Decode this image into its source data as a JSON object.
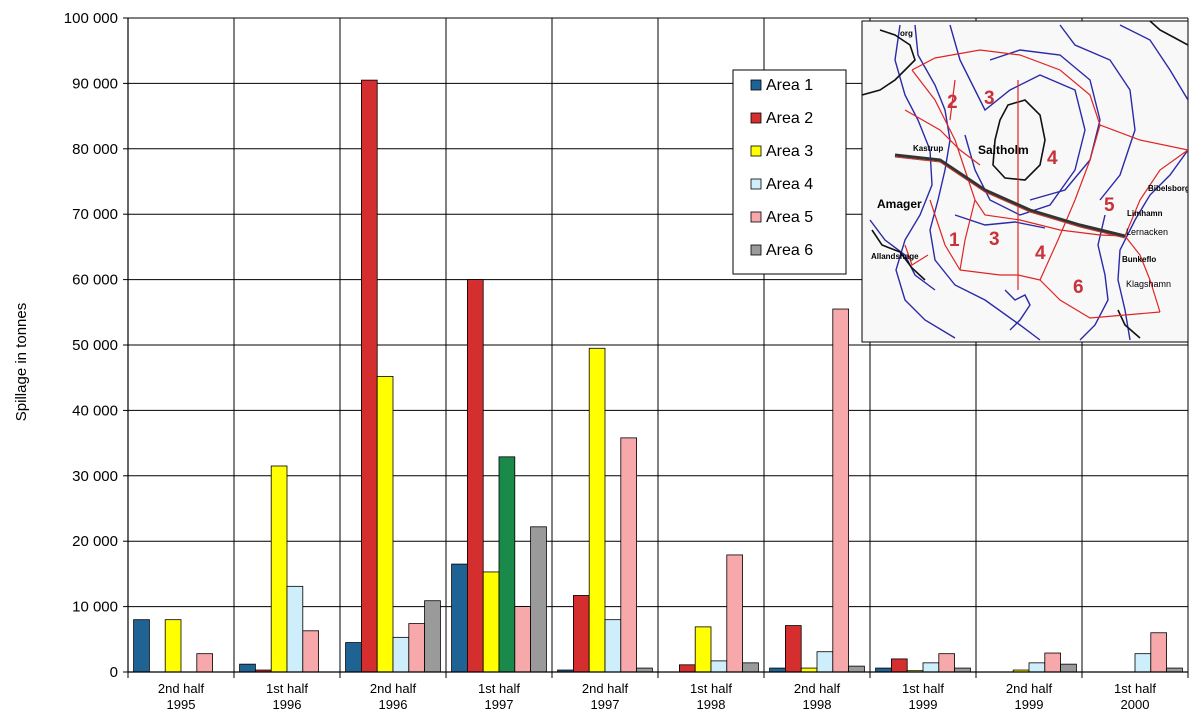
{
  "chart_data": {
    "type": "bar",
    "ylabel": "Spillage in tonnes",
    "ylim": [
      0,
      100000
    ],
    "yticks": [
      0,
      10000,
      20000,
      30000,
      40000,
      50000,
      60000,
      70000,
      80000,
      90000,
      100000
    ],
    "ytick_labels": [
      "0",
      "10 000",
      "20 000",
      "30 000",
      "40 000",
      "50 000",
      "60 000",
      "70 000",
      "80 000",
      "90 000",
      "100 000"
    ],
    "grid": true,
    "legend_position": "top-right",
    "categories": [
      {
        "line1": "2nd half",
        "line2": "1995"
      },
      {
        "line1": "1st half",
        "line2": "1996"
      },
      {
        "line1": "2nd half",
        "line2": "1996"
      },
      {
        "line1": "1st half",
        "line2": "1997"
      },
      {
        "line1": "2nd half",
        "line2": "1997"
      },
      {
        "line1": "1st half",
        "line2": "1998"
      },
      {
        "line1": "2nd half",
        "line2": "1998"
      },
      {
        "line1": "1st half",
        "line2": "1999"
      },
      {
        "line1": "2nd half",
        "line2": "1999"
      },
      {
        "line1": "1st half",
        "line2": "2000"
      }
    ],
    "series": [
      {
        "name": "Area 1",
        "color": "#1f6394",
        "values": [
          8000,
          1200,
          4500,
          16500,
          300,
          0,
          600,
          600,
          0,
          0
        ]
      },
      {
        "name": "Area 2",
        "color": "#d42e2e",
        "values": [
          0,
          300,
          90500,
          60000,
          11700,
          1100,
          7100,
          2000,
          0,
          0
        ]
      },
      {
        "name": "Area 3",
        "color": "#ffff00",
        "values": [
          8000,
          31500,
          45200,
          15300,
          49500,
          6900,
          600,
          200,
          300,
          0
        ]
      },
      {
        "name": "Area 4",
        "color": "#cdeefa",
        "values": [
          0,
          13100,
          5300,
          32900,
          8000,
          1700,
          3100,
          1400,
          1400,
          2800
        ]
      },
      {
        "name": "Area 5",
        "color": "#f7a8ab",
        "values": [
          2800,
          6300,
          7400,
          10000,
          35800,
          17900,
          55500,
          2800,
          2900,
          6000
        ]
      },
      {
        "name": "Area 6",
        "color": "#9a9a9a",
        "values": [
          0,
          0,
          10900,
          22200,
          600,
          1400,
          900,
          600,
          1200,
          600
        ]
      }
    ],
    "extra_bar": {
      "category_index": 3,
      "slot": 3,
      "color": "#1a8a4a",
      "value": 32900
    }
  },
  "map": {
    "land_labels": {
      "malmo_north": "org",
      "kastrup": "Kastrup",
      "saltholm": "Saltholm",
      "amager": "Amager",
      "dragor": "Allandshage",
      "bibelsborg": "Bibelsborg",
      "limhamn": "Limhamn",
      "lernacken": "Lernacken",
      "bunkeflo": "Bunkeflo",
      "klagshamn": "Klagshamn"
    },
    "zones": [
      "1",
      "2",
      "3",
      "4",
      "5",
      "6"
    ],
    "zone_number_labels": [
      "1",
      "2",
      "3",
      "3",
      "4",
      "4",
      "5",
      "6"
    ]
  }
}
